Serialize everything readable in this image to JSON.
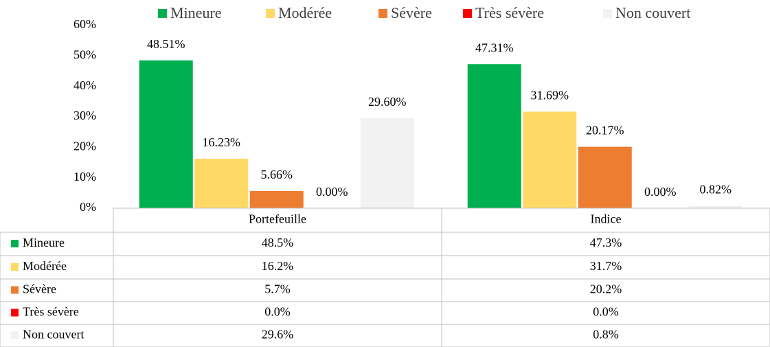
{
  "chart_data": {
    "type": "bar",
    "categories": [
      "Portefeuille",
      "Indice"
    ],
    "series": [
      {
        "name": "Mineure",
        "color": "#00b050",
        "values": [
          48.51,
          47.31
        ],
        "value_labels": [
          "48.51%",
          "47.31%"
        ],
        "table_labels": [
          "48.5%",
          "47.3%"
        ]
      },
      {
        "name": "Modérée",
        "color": "#ffd966",
        "values": [
          16.23,
          31.69
        ],
        "value_labels": [
          "16.23%",
          "31.69%"
        ],
        "table_labels": [
          "16.2%",
          "31.7%"
        ]
      },
      {
        "name": "Sévère",
        "color": "#ed7d31",
        "values": [
          5.66,
          20.17
        ],
        "value_labels": [
          "5.66%",
          "20.17%"
        ],
        "table_labels": [
          "5.7%",
          "20.2%"
        ]
      },
      {
        "name": "Très sévère",
        "color": "#ff0000",
        "values": [
          0,
          0
        ],
        "value_labels": [
          "0.00%",
          "0.00%"
        ],
        "table_labels": [
          "0.0%",
          "0.0%"
        ]
      },
      {
        "name": "Non couvert",
        "color": "#f2f2f2",
        "values": [
          29.6,
          0.82
        ],
        "value_labels": [
          "29.60%",
          "0.82%"
        ],
        "table_labels": [
          "29.6%",
          "0.8%"
        ]
      }
    ],
    "ylim": [
      0,
      60
    ],
    "yticks": [
      {
        "value": 0,
        "label": "0%"
      },
      {
        "value": 10,
        "label": "10%"
      },
      {
        "value": 20,
        "label": "20%"
      },
      {
        "value": 30,
        "label": "30%"
      },
      {
        "value": 40,
        "label": "40%"
      },
      {
        "value": 50,
        "label": "50%"
      },
      {
        "value": 60,
        "label": "60%"
      }
    ],
    "grid": false,
    "legend": "top"
  }
}
